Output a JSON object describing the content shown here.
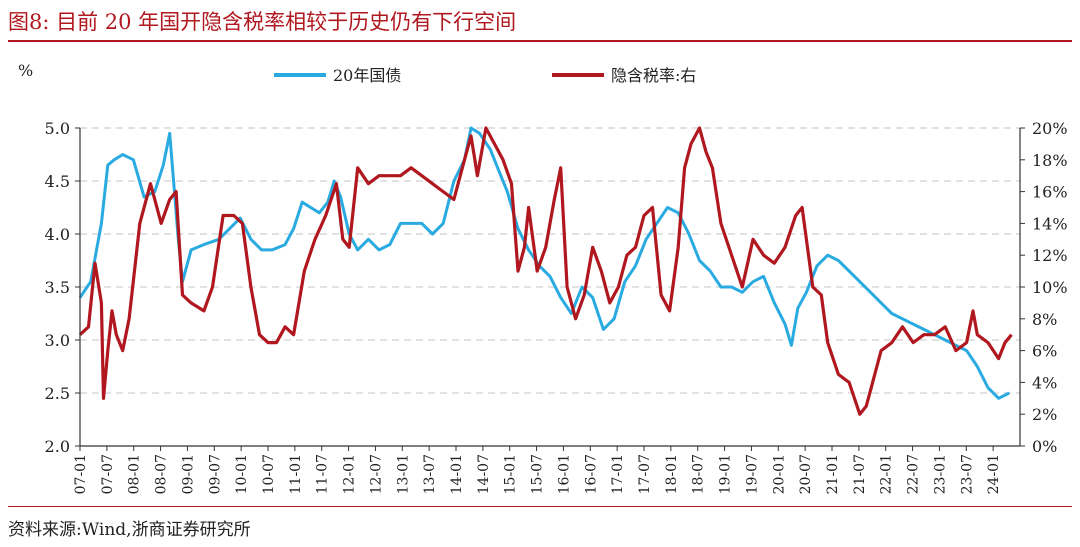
{
  "figure": {
    "title": "图8:   目前 20 年国开隐含税率相较于历史仍有下行空间",
    "source": "资料来源:Wind,浙商证券研究所"
  },
  "colors": {
    "title": "#b0171f",
    "series_yield": "#29abe2",
    "series_tax": "#b0171f",
    "grid": "#d9d9d9",
    "axis": "#333333"
  },
  "chart_data": {
    "type": "line",
    "left_axis_unit": "%",
    "x_ticks": [
      "07-01",
      "07-07",
      "08-01",
      "08-07",
      "09-01",
      "09-07",
      "10-01",
      "10-07",
      "11-01",
      "11-07",
      "12-01",
      "12-07",
      "13-01",
      "13-07",
      "14-01",
      "14-07",
      "15-01",
      "15-07",
      "16-01",
      "16-07",
      "17-01",
      "17-07",
      "18-01",
      "18-07",
      "19-01",
      "19-07",
      "20-01",
      "20-07",
      "21-01",
      "21-07",
      "22-01",
      "22-07",
      "23-01",
      "23-07",
      "24-01"
    ],
    "y_left": {
      "min": 2.0,
      "max": 5.0,
      "ticks": [
        "2.0",
        "2.5",
        "3.0",
        "3.5",
        "4.0",
        "4.5",
        "5.0"
      ]
    },
    "y_right": {
      "min": 0,
      "max": 20,
      "ticks": [
        "0%",
        "2%",
        "4%",
        "6%",
        "8%",
        "10%",
        "12%",
        "14%",
        "16%",
        "18%",
        "20%"
      ]
    },
    "grid": true,
    "legend_position": "top",
    "series": [
      {
        "name": "20年国债",
        "axis": "left",
        "color": "#29abe2",
        "points": [
          [
            0.0,
            3.4
          ],
          [
            0.5,
            3.55
          ],
          [
            1.0,
            4.1
          ],
          [
            1.3,
            4.65
          ],
          [
            1.6,
            4.7
          ],
          [
            2.0,
            4.75
          ],
          [
            2.5,
            4.7
          ],
          [
            3.0,
            4.35
          ],
          [
            3.5,
            4.4
          ],
          [
            3.9,
            4.65
          ],
          [
            4.2,
            4.95
          ],
          [
            4.6,
            3.95
          ],
          [
            4.8,
            3.55
          ],
          [
            5.2,
            3.85
          ],
          [
            5.8,
            3.9
          ],
          [
            6.5,
            3.95
          ],
          [
            7.0,
            4.05
          ],
          [
            7.5,
            4.15
          ],
          [
            8.0,
            3.95
          ],
          [
            8.5,
            3.85
          ],
          [
            9.0,
            3.85
          ],
          [
            9.6,
            3.9
          ],
          [
            10.0,
            4.05
          ],
          [
            10.4,
            4.3
          ],
          [
            10.8,
            4.25
          ],
          [
            11.2,
            4.2
          ],
          [
            11.6,
            4.3
          ],
          [
            11.9,
            4.5
          ],
          [
            12.2,
            4.35
          ],
          [
            12.6,
            4.0
          ],
          [
            13.0,
            3.85
          ],
          [
            13.5,
            3.95
          ],
          [
            14.0,
            3.85
          ],
          [
            14.5,
            3.9
          ],
          [
            15.0,
            4.1
          ],
          [
            15.5,
            4.1
          ],
          [
            16.0,
            4.1
          ],
          [
            16.5,
            4.0
          ],
          [
            17.0,
            4.1
          ],
          [
            17.5,
            4.5
          ],
          [
            18.0,
            4.7
          ],
          [
            18.3,
            5.0
          ],
          [
            18.7,
            4.95
          ],
          [
            19.2,
            4.8
          ],
          [
            19.6,
            4.6
          ],
          [
            20.0,
            4.4
          ],
          [
            20.5,
            4.05
          ],
          [
            21.0,
            3.85
          ],
          [
            21.5,
            3.7
          ],
          [
            22.0,
            3.6
          ],
          [
            22.5,
            3.4
          ],
          [
            23.0,
            3.25
          ],
          [
            23.5,
            3.5
          ],
          [
            24.0,
            3.4
          ],
          [
            24.5,
            3.1
          ],
          [
            25.0,
            3.2
          ],
          [
            25.5,
            3.55
          ],
          [
            26.0,
            3.7
          ],
          [
            26.5,
            3.95
          ],
          [
            27.0,
            4.1
          ],
          [
            27.5,
            4.25
          ],
          [
            28.0,
            4.2
          ],
          [
            28.5,
            4.0
          ],
          [
            29.0,
            3.75
          ],
          [
            29.5,
            3.65
          ],
          [
            30.0,
            3.5
          ],
          [
            30.5,
            3.5
          ],
          [
            31.0,
            3.45
          ],
          [
            31.5,
            3.55
          ],
          [
            32.0,
            3.6
          ],
          [
            32.5,
            3.35
          ],
          [
            33.0,
            3.15
          ],
          [
            33.3,
            2.95
          ],
          [
            33.6,
            3.3
          ],
          [
            34.0,
            3.45
          ],
          [
            34.5,
            3.7
          ],
          [
            35.0,
            3.8
          ],
          [
            35.5,
            3.75
          ],
          [
            36.0,
            3.65
          ],
          [
            36.5,
            3.55
          ],
          [
            37.0,
            3.45
          ],
          [
            37.5,
            3.35
          ],
          [
            38.0,
            3.25
          ],
          [
            38.5,
            3.2
          ],
          [
            39.0,
            3.15
          ],
          [
            39.5,
            3.1
          ],
          [
            40.0,
            3.05
          ],
          [
            40.5,
            3.0
          ],
          [
            41.0,
            2.95
          ],
          [
            41.5,
            2.9
          ],
          [
            42.0,
            2.75
          ],
          [
            42.5,
            2.55
          ],
          [
            43.0,
            2.45
          ],
          [
            43.5,
            2.5
          ]
        ]
      },
      {
        "name": "隐含税率:右",
        "axis": "right",
        "color": "#b0171f",
        "points": [
          [
            0.0,
            7.0
          ],
          [
            0.4,
            7.5
          ],
          [
            0.7,
            11.5
          ],
          [
            1.0,
            9.0
          ],
          [
            1.1,
            3.0
          ],
          [
            1.3,
            6.0
          ],
          [
            1.5,
            8.5
          ],
          [
            1.7,
            7.0
          ],
          [
            2.0,
            6.0
          ],
          [
            2.3,
            8.0
          ],
          [
            2.8,
            14.0
          ],
          [
            3.3,
            16.5
          ],
          [
            3.8,
            14.0
          ],
          [
            4.2,
            15.5
          ],
          [
            4.5,
            16.0
          ],
          [
            4.8,
            9.5
          ],
          [
            5.2,
            9.0
          ],
          [
            5.8,
            8.5
          ],
          [
            6.2,
            10.0
          ],
          [
            6.7,
            14.5
          ],
          [
            7.2,
            14.5
          ],
          [
            7.6,
            14.0
          ],
          [
            8.0,
            10.0
          ],
          [
            8.4,
            7.0
          ],
          [
            8.8,
            6.5
          ],
          [
            9.2,
            6.5
          ],
          [
            9.6,
            7.5
          ],
          [
            10.0,
            7.0
          ],
          [
            10.5,
            11.0
          ],
          [
            11.0,
            13.0
          ],
          [
            11.5,
            14.5
          ],
          [
            12.0,
            16.5
          ],
          [
            12.3,
            13.0
          ],
          [
            12.6,
            12.5
          ],
          [
            13.0,
            17.5
          ],
          [
            13.5,
            16.5
          ],
          [
            14.0,
            17.0
          ],
          [
            14.5,
            17.0
          ],
          [
            15.0,
            17.0
          ],
          [
            15.5,
            17.5
          ],
          [
            16.0,
            17.0
          ],
          [
            16.5,
            16.5
          ],
          [
            17.0,
            16.0
          ],
          [
            17.5,
            15.5
          ],
          [
            18.0,
            18.0
          ],
          [
            18.3,
            19.5
          ],
          [
            18.6,
            17.0
          ],
          [
            19.0,
            20.0
          ],
          [
            19.4,
            19.0
          ],
          [
            19.8,
            18.0
          ],
          [
            20.2,
            16.5
          ],
          [
            20.5,
            11.0
          ],
          [
            20.8,
            12.5
          ],
          [
            21.0,
            15.0
          ],
          [
            21.4,
            11.0
          ],
          [
            21.8,
            12.5
          ],
          [
            22.2,
            15.5
          ],
          [
            22.5,
            17.5
          ],
          [
            22.8,
            10.0
          ],
          [
            23.2,
            8.0
          ],
          [
            23.6,
            9.5
          ],
          [
            24.0,
            12.5
          ],
          [
            24.4,
            11.0
          ],
          [
            24.8,
            9.0
          ],
          [
            25.2,
            10.0
          ],
          [
            25.6,
            12.0
          ],
          [
            26.0,
            12.5
          ],
          [
            26.4,
            14.5
          ],
          [
            26.8,
            15.0
          ],
          [
            27.2,
            9.5
          ],
          [
            27.6,
            8.5
          ],
          [
            28.0,
            12.5
          ],
          [
            28.3,
            17.5
          ],
          [
            28.6,
            19.0
          ],
          [
            29.0,
            20.0
          ],
          [
            29.3,
            18.5
          ],
          [
            29.6,
            17.5
          ],
          [
            30.0,
            14.0
          ],
          [
            30.5,
            12.0
          ],
          [
            31.0,
            10.0
          ],
          [
            31.5,
            13.0
          ],
          [
            32.0,
            12.0
          ],
          [
            32.5,
            11.5
          ],
          [
            33.0,
            12.5
          ],
          [
            33.5,
            14.5
          ],
          [
            33.8,
            15.0
          ],
          [
            34.0,
            13.0
          ],
          [
            34.3,
            10.0
          ],
          [
            34.7,
            9.5
          ],
          [
            35.0,
            6.5
          ],
          [
            35.5,
            4.5
          ],
          [
            36.0,
            4.0
          ],
          [
            36.5,
            2.0
          ],
          [
            36.8,
            2.5
          ],
          [
            37.0,
            3.5
          ],
          [
            37.5,
            6.0
          ],
          [
            38.0,
            6.5
          ],
          [
            38.5,
            7.5
          ],
          [
            39.0,
            6.5
          ],
          [
            39.5,
            7.0
          ],
          [
            40.0,
            7.0
          ],
          [
            40.5,
            7.5
          ],
          [
            41.0,
            6.0
          ],
          [
            41.5,
            6.5
          ],
          [
            41.8,
            8.5
          ],
          [
            42.0,
            7.0
          ],
          [
            42.5,
            6.5
          ],
          [
            43.0,
            5.5
          ],
          [
            43.3,
            6.5
          ],
          [
            43.6,
            7.0
          ]
        ]
      }
    ]
  }
}
